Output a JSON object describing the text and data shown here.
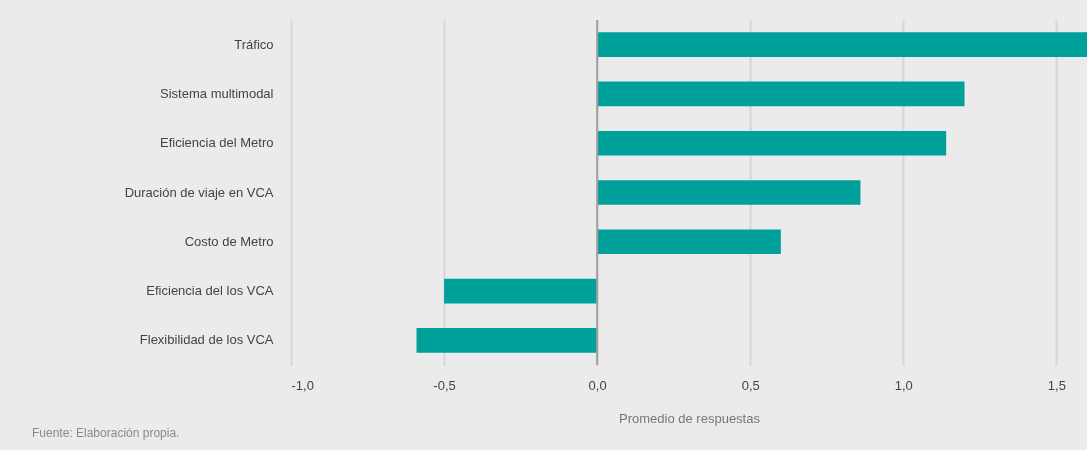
{
  "chart_data": {
    "type": "bar",
    "orientation": "horizontal",
    "xlabel": "Promedio de respuestas",
    "categories": [
      "Tráfico",
      "Sistema multimodal",
      "Eficiencia del Metro",
      "Duración de viaje en VCA",
      "Costo de Metro",
      "Eficiencia del los VCA",
      "Flexibilidad de los VCA"
    ],
    "values": [
      1.6,
      1.2,
      1.14,
      0.86,
      0.6,
      -0.5,
      -0.59
    ],
    "color": "#00a19a",
    "xlim": [
      -1,
      1.6
    ],
    "xticks": [
      {
        "value": -1,
        "label": "-1,0"
      },
      {
        "value": -0.5,
        "label": "-0,5"
      },
      {
        "value": 0,
        "label": "0,0"
      },
      {
        "value": 0.5,
        "label": "0,5"
      },
      {
        "value": 1,
        "label": "1,0"
      },
      {
        "value": 1.5,
        "label": "1,5"
      }
    ],
    "grid": "x",
    "ref_lines": [
      {
        "axis": "x",
        "value": 0,
        "color": "#a0a0a0"
      }
    ],
    "annotations": [
      "Fuente: Elaboración propia."
    ]
  }
}
